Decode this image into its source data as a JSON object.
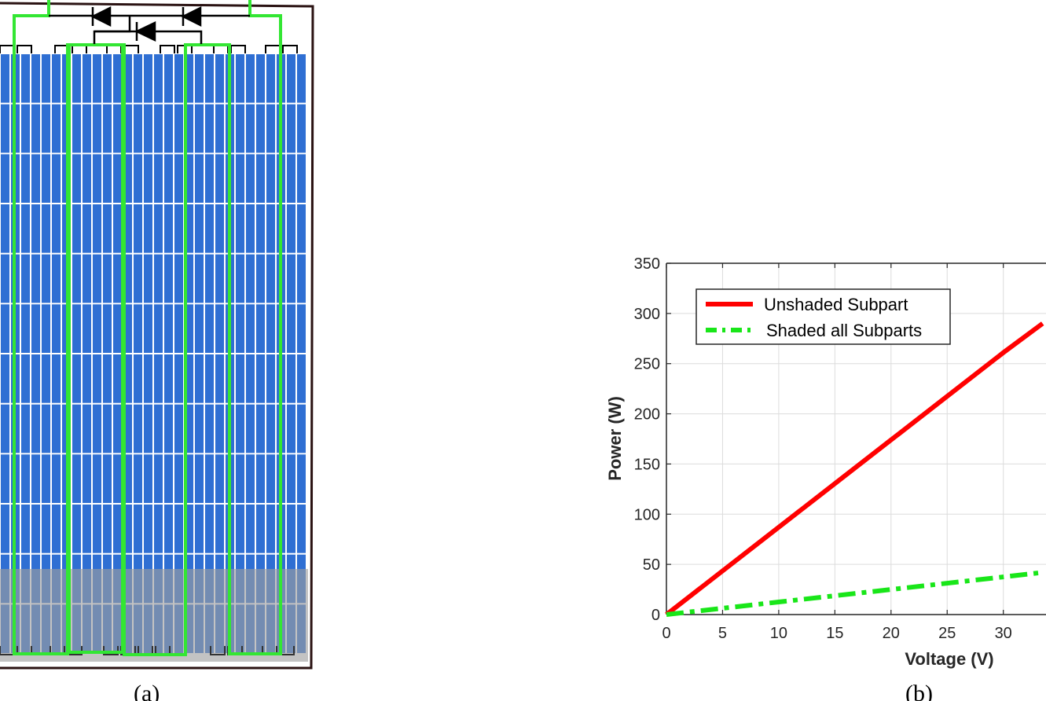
{
  "captions": {
    "left": "(a)",
    "right": "(b)"
  },
  "colors": {
    "cell_blue": "#2f6fd3",
    "string_green": "#33e633",
    "frame": "#2a1212",
    "shade_overlay": "#9e9e9e",
    "unshaded_red": "#ff0000",
    "shaded_green": "#19e619"
  },
  "chart_data": {
    "type": "line",
    "xlabel": "Voltage (V)",
    "ylabel": "Power (W)",
    "xlim": [
      0,
      40
    ],
    "ylim": [
      0,
      350
    ],
    "xticks": [
      0,
      5,
      10,
      15,
      20,
      25,
      30
    ],
    "yticks": [
      0,
      50,
      100,
      150,
      200,
      250,
      300,
      350
    ],
    "grid": true,
    "legend_position": "top-left",
    "series": [
      {
        "name": "Unshaded Subpart",
        "color": "#ff0000",
        "style": "solid",
        "x": [
          0,
          10,
          20,
          30,
          33.5
        ],
        "y": [
          0,
          87,
          174,
          261,
          290
        ]
      },
      {
        "name": "Shaded all Subparts",
        "color": "#19e619",
        "style": "dashdot",
        "x": [
          0,
          10,
          20,
          30,
          33.5
        ],
        "y": [
          0,
          12.5,
          25,
          37.5,
          42
        ]
      }
    ]
  }
}
